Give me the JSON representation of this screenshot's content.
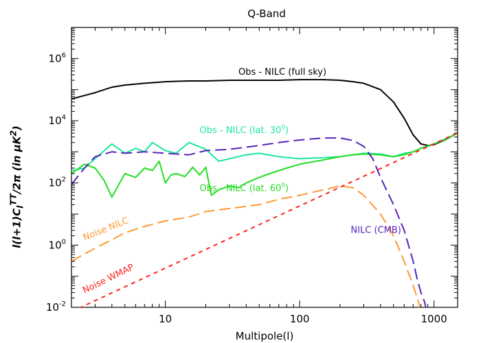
{
  "chart_data": {
    "type": "line",
    "title": "Q-Band",
    "xlabel": "Multipole(l)",
    "ylabel": "l(l+1)C_l^TT/2π (in μK²)",
    "xscale": "log",
    "yscale": "log",
    "xlim": [
      2,
      1500
    ],
    "ylim": [
      0.01,
      10000000
    ],
    "x_ticks": [
      {
        "value": 10,
        "label": "10"
      },
      {
        "value": 100,
        "label": "100"
      },
      {
        "value": 1000,
        "label": "1000"
      }
    ],
    "y_ticks": [
      {
        "value": 0.01,
        "base": "10",
        "exp": "-2"
      },
      {
        "value": 1,
        "base": "10",
        "exp": "0"
      },
      {
        "value": 100,
        "base": "10",
        "exp": "2"
      },
      {
        "value": 10000,
        "base": "10",
        "exp": "4"
      },
      {
        "value": 1000000,
        "base": "10",
        "exp": "6"
      }
    ],
    "series": [
      {
        "name": "Obs - NILC (full sky)",
        "color": "#000000",
        "dash": "solid",
        "x": [
          2,
          3,
          4,
          5,
          7,
          10,
          15,
          20,
          30,
          50,
          70,
          100,
          150,
          200,
          250,
          300,
          400,
          500,
          600,
          700,
          800,
          900,
          1000,
          1200,
          1500
        ],
        "y": [
          50000,
          80000,
          120000,
          140000,
          160000,
          180000,
          190000,
          190000,
          200000,
          200000,
          200000,
          210000,
          210000,
          200000,
          180000,
          160000,
          100000,
          40000,
          12000,
          3500,
          1800,
          1600,
          1700,
          2400,
          4000
        ]
      },
      {
        "name": "Obs - NILC (lat. 30°)",
        "color": "#1ee6a0",
        "dash": "solid",
        "x": [
          2,
          2.5,
          3,
          4,
          5,
          6,
          7,
          8,
          10,
          12,
          15,
          20,
          25,
          30,
          40,
          50,
          70,
          100,
          150,
          200,
          300,
          400,
          500,
          600,
          700,
          800,
          900,
          1000,
          1200,
          1500
        ],
        "y": [
          250,
          300,
          600,
          1800,
          900,
          1300,
          1000,
          2000,
          1100,
          900,
          2000,
          1200,
          500,
          600,
          800,
          900,
          700,
          600,
          650,
          700,
          900,
          850,
          700,
          900,
          1000,
          1300,
          1500,
          1800,
          2500,
          4000
        ]
      },
      {
        "name": "Obs - NILC (lat. 60°)",
        "color": "#22dd22",
        "dash": "solid",
        "x": [
          2,
          2.5,
          3,
          3.5,
          4,
          5,
          6,
          7,
          8,
          9,
          10,
          11,
          12,
          14,
          16,
          18,
          20,
          22,
          25,
          30,
          35,
          40,
          50,
          60,
          80,
          100,
          150,
          200,
          250,
          300,
          400,
          500,
          600,
          700,
          800,
          1000,
          1200,
          1500
        ],
        "y": [
          200,
          400,
          300,
          120,
          35,
          200,
          150,
          300,
          250,
          500,
          100,
          180,
          200,
          160,
          320,
          180,
          320,
          40,
          60,
          80,
          70,
          100,
          150,
          200,
          300,
          400,
          550,
          700,
          800,
          850,
          800,
          700,
          800,
          1000,
          1300,
          1800,
          2500,
          4000
        ]
      },
      {
        "name": "NILC (CMB)",
        "color": "#5522bb",
        "dash": "long",
        "x": [
          2,
          2.5,
          3,
          4,
          5,
          7,
          10,
          15,
          20,
          30,
          50,
          70,
          100,
          150,
          200,
          250,
          300,
          350,
          400,
          500,
          600,
          700,
          750,
          800,
          850,
          900
        ],
        "y": [
          90,
          300,
          700,
          1000,
          900,
          1000,
          900,
          800,
          1100,
          1200,
          1600,
          2000,
          2400,
          2800,
          2800,
          2300,
          1500,
          600,
          150,
          20,
          3,
          0.3,
          0.08,
          0.03,
          0.015,
          0.005
        ]
      },
      {
        "name": "Noise NILC",
        "color": "#ff9933",
        "dash": "long",
        "x": [
          2,
          3,
          4,
          5,
          7,
          10,
          15,
          20,
          30,
          50,
          70,
          100,
          150,
          200,
          250,
          300,
          400,
          500,
          600,
          700,
          750,
          800,
          850
        ],
        "y": [
          0.3,
          0.8,
          1.5,
          2.5,
          4,
          6,
          8,
          12,
          15,
          20,
          30,
          40,
          60,
          80,
          70,
          40,
          10,
          2,
          0.3,
          0.05,
          0.02,
          0.008,
          0.003
        ]
      },
      {
        "name": "Noise WMAP",
        "color": "#ff2222",
        "dash": "short",
        "x": [
          2,
          1500
        ],
        "y": [
          0.00729,
          4100
        ]
      }
    ],
    "annotations": [
      {
        "text": "Obs - NILC (full sky)",
        "color": "#000000",
        "x": 35,
        "y": 300000,
        "angle": 0
      },
      {
        "text": "Obs - NILC (lat. 30",
        "sup": "0",
        "tail": ")",
        "color": "#1ee6a0",
        "x": 18,
        "y": 4000,
        "angle": 0
      },
      {
        "text": "Obs - NILC (lat. 60",
        "sup": "0",
        "tail": ")",
        "color": "#22dd22",
        "x": 18,
        "y": 55,
        "angle": 0
      },
      {
        "text": "NILC (CMB)",
        "color": "#5522bb",
        "x": 240,
        "y": 2.5,
        "angle": 0
      },
      {
        "text": "Noise NILC",
        "color": "#ff9933",
        "x": 2.5,
        "y": 1.4,
        "angle": -22
      },
      {
        "text": "Noise WMAP",
        "color": "#ff2222",
        "x": 2.5,
        "y": 0.028,
        "angle": -26
      }
    ]
  }
}
